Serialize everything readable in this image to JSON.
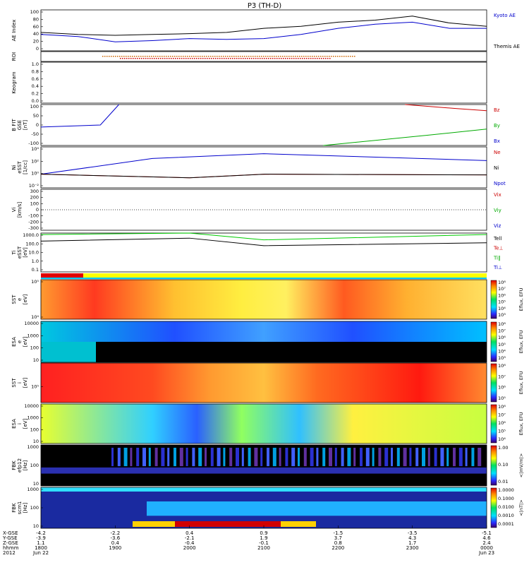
{
  "title": "P3 (TH-D)",
  "panels": [
    {
      "id": "ae",
      "ylabel": [
        "AE Index"
      ],
      "yticks": [
        "100",
        "80",
        "60",
        "40",
        "20",
        "0"
      ],
      "legend": [
        {
          "text": "Kyoto AE",
          "color": "#0000cc"
        },
        {
          "text": "Themis AE",
          "color": "#000000"
        }
      ]
    },
    {
      "id": "roi",
      "ylabel": [
        "ROI"
      ],
      "yticks": [],
      "legend": []
    },
    {
      "id": "keogram",
      "ylabel": [
        "Keogram"
      ],
      "yticks": [
        "1.0",
        "0.8",
        "0.6",
        "0.4",
        "0.2",
        "0.0"
      ],
      "legend": []
    },
    {
      "id": "bfit",
      "ylabel": [
        "B FIT",
        "GSE",
        "[nT]"
      ],
      "yticks": [
        "100",
        "50",
        "0",
        "-50",
        "-100"
      ],
      "legend": [
        {
          "text": "Bz",
          "color": "#cc0000"
        },
        {
          "text": "By",
          "color": "#00aa00"
        },
        {
          "text": "Bx",
          "color": "#0000cc"
        }
      ]
    },
    {
      "id": "ni",
      "ylabel": [
        "Ni",
        "eSST",
        "[1/cc]"
      ],
      "yticks": [
        "10⁴",
        "10²",
        "10⁰",
        "10⁻²"
      ],
      "legend": [
        {
          "text": "Ne",
          "color": "#cc0000"
        },
        {
          "text": "Ni",
          "color": "#000000"
        },
        {
          "text": "Npot",
          "color": "#0000cc"
        }
      ]
    },
    {
      "id": "vi",
      "ylabel": [
        "Vi",
        "[km/s]"
      ],
      "yticks": [
        "300",
        "200",
        "100",
        "0",
        "-100",
        "-200",
        "-300"
      ],
      "legend": [
        {
          "text": "Vix",
          "color": "#cc0000"
        },
        {
          "text": "Viy",
          "color": "#00aa00"
        },
        {
          "text": "Viz",
          "color": "#0000cc"
        }
      ]
    },
    {
      "id": "ti",
      "ylabel": [
        "Ti",
        "eSST",
        "[eV]"
      ],
      "yticks": [
        "1000.0",
        "100.0",
        "10.0",
        "1.0",
        "0.1"
      ],
      "legend": [
        {
          "text": "Tell",
          "color": "#000000"
        },
        {
          "text": "Te⊥",
          "color": "#cc0000"
        },
        {
          "text": "Ti‖",
          "color": "#00aa00"
        },
        {
          "text": "Ti⊥",
          "color": "#0000cc"
        }
      ]
    },
    {
      "id": "sst_e",
      "ylabel": [
        "SST",
        "e",
        "[eV]"
      ],
      "yticks": [
        "10⁵",
        "10⁴"
      ],
      "cbar": [
        "10⁸",
        "10⁷",
        "10⁶",
        "10⁵",
        "10⁴",
        "10³"
      ],
      "cbar_label": "Eflux, EFU"
    },
    {
      "id": "esa_e",
      "ylabel": [
        "ESA",
        "e",
        "[eV]"
      ],
      "yticks": [
        "10000",
        "1000",
        "100",
        "10"
      ],
      "cbar": [
        "10⁸",
        "10⁷",
        "10⁶",
        "10⁵",
        "10⁴",
        "10³"
      ],
      "cbar_label": "Eflux, EFU"
    },
    {
      "id": "sst_i",
      "ylabel": [
        "SST",
        "i",
        "[eV]"
      ],
      "yticks": [
        "10⁵"
      ],
      "cbar": [
        "10⁸",
        "10⁷",
        "10⁶",
        "10⁵"
      ],
      "cbar_label": "Eflux, EFU"
    },
    {
      "id": "esa_i",
      "ylabel": [
        "ESA",
        "i",
        "[eV]"
      ],
      "yticks": [
        "10000",
        "1000",
        "100",
        "10"
      ],
      "cbar": [
        "10⁸",
        "10⁷",
        "10⁶",
        "10⁵",
        "10⁴"
      ],
      "cbar_label": "Eflux, EFU"
    },
    {
      "id": "fbk_e12",
      "ylabel": [
        "FBK",
        "efp12",
        "[Hz]"
      ],
      "yticks": [
        "1000",
        "100",
        "10"
      ],
      "cbar": [
        "1.00",
        "0.10",
        "0.01"
      ],
      "cbar_label": "<|mV/m|>"
    },
    {
      "id": "fbk_scm",
      "ylabel": [
        "FBK",
        "scm1",
        "[Hz]"
      ],
      "yticks": [
        "1000",
        "100",
        "10"
      ],
      "cbar": [
        "1.0000",
        "0.1000",
        "0.0100",
        "0.0010",
        "0.0001"
      ],
      "cbar_label": "<|nT|>"
    }
  ],
  "xaxis": {
    "row_labels": [
      "X-GSE",
      "Y-GSE",
      "Z-GSE",
      "hhmm",
      "2012"
    ],
    "columns": [
      [
        "-4.2",
        "-3.9",
        "1.1",
        "1800",
        "Jun 22"
      ],
      [
        "-2.2",
        "-3.6",
        "0.4",
        "1900",
        ""
      ],
      [
        "0.4",
        "-2.1",
        "-0.4",
        "2000",
        ""
      ],
      [
        "0.9",
        "1.9",
        "-0.1",
        "2100",
        ""
      ],
      [
        "-1.5",
        "3.7",
        "0.8",
        "2200",
        ""
      ],
      [
        "-3.5",
        "4.3",
        "1.7",
        "2300",
        ""
      ],
      [
        "-5.1",
        "4.6",
        "2.4",
        "0000",
        "Jun 23"
      ]
    ]
  },
  "chart_data": [
    {
      "type": "line",
      "title": "AE Index",
      "x_hours": [
        18,
        18.5,
        19,
        19.5,
        20,
        20.5,
        21,
        21.5,
        22,
        22.5,
        23,
        23.5,
        24
      ],
      "series": [
        {
          "name": "Kyoto AE",
          "values": [
            40,
            35,
            22,
            25,
            30,
            28,
            30,
            40,
            55,
            65,
            70,
            55,
            55
          ]
        },
        {
          "name": "Themis AE",
          "values": [
            45,
            40,
            38,
            40,
            42,
            45,
            55,
            60,
            70,
            75,
            85,
            68,
            60
          ]
        }
      ],
      "ylim": [
        0,
        100
      ]
    },
    {
      "type": "line",
      "title": "B FIT",
      "ylim": [
        -100,
        100
      ],
      "series": [
        {
          "name": "Bx",
          "values": [
            -10,
            0,
            100
          ]
        },
        {
          "name": "By",
          "values": [
            -100,
            -50,
            -20
          ]
        },
        {
          "name": "Bz",
          "values": [
            100,
            80,
            70
          ]
        }
      ]
    },
    {
      "type": "line",
      "title": "Ni",
      "ylim": [
        0.01,
        10000
      ],
      "ylog": true,
      "series": [
        {
          "name": "Npot",
          "values": [
            1,
            200,
            1000,
            100
          ]
        },
        {
          "name": "Ne",
          "values": [
            1,
            0.3,
            1,
            0.8
          ]
        },
        {
          "name": "Ni",
          "values": [
            1,
            0.3,
            1,
            0.8
          ]
        }
      ]
    },
    {
      "type": "line",
      "title": "Ti",
      "ylim": [
        0.1,
        1000
      ],
      "ylog": true,
      "series": [
        {
          "name": "Ti‖",
          "values": [
            700,
            1000,
            200,
            700
          ]
        },
        {
          "name": "Tell",
          "values": [
            150,
            300,
            50,
            100
          ]
        }
      ]
    },
    {
      "type": "heatmap",
      "title": "SST e",
      "ylabel": "[eV]",
      "cbar_label": "Eflux, EFU"
    },
    {
      "type": "heatmap",
      "title": "ESA e",
      "ylabel": "[eV]",
      "cbar_label": "Eflux, EFU"
    },
    {
      "type": "heatmap",
      "title": "SST i",
      "ylabel": "[eV]",
      "cbar_label": "Eflux, EFU"
    },
    {
      "type": "heatmap",
      "title": "ESA i",
      "ylabel": "[eV]",
      "cbar_label": "Eflux, EFU"
    },
    {
      "type": "heatmap",
      "title": "FBK efp12",
      "ylabel": "[Hz]",
      "cbar_label": "<|mV/m|>"
    },
    {
      "type": "heatmap",
      "title": "FBK scm1",
      "ylabel": "[Hz]",
      "cbar_label": "<|nT|>"
    }
  ]
}
